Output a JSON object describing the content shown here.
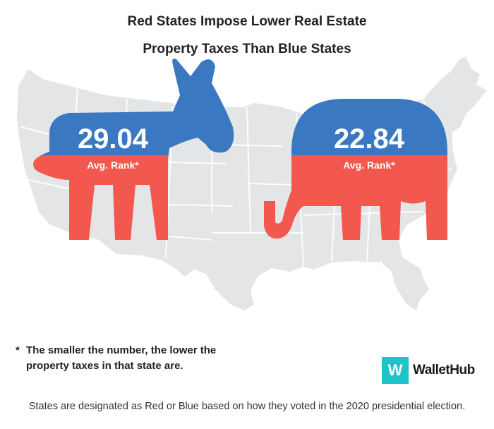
{
  "title": {
    "line1": "Red States Impose Lower Real Estate",
    "line2": "Property Taxes Than Blue States"
  },
  "democrat": {
    "value": "29.04",
    "label": "Avg. Rank*"
  },
  "republican": {
    "value": "22.84",
    "label": "Avg. Rank*"
  },
  "note": {
    "marker": "*",
    "text": "The smaller the number, the lower the property taxes in that state are."
  },
  "brand": {
    "logo_letter": "W",
    "name": "WalletHub"
  },
  "footer": "States are designated as Red or Blue based on how they voted in the 2020 presidential election.",
  "colors": {
    "blue": "#3b78c2",
    "red": "#f2584e",
    "map": "#e3e5e7",
    "map_lines": "#ffffff",
    "logo_teal": "#1ec4c9"
  },
  "icons": [
    "donkey-icon",
    "elephant-icon",
    "us-map"
  ]
}
